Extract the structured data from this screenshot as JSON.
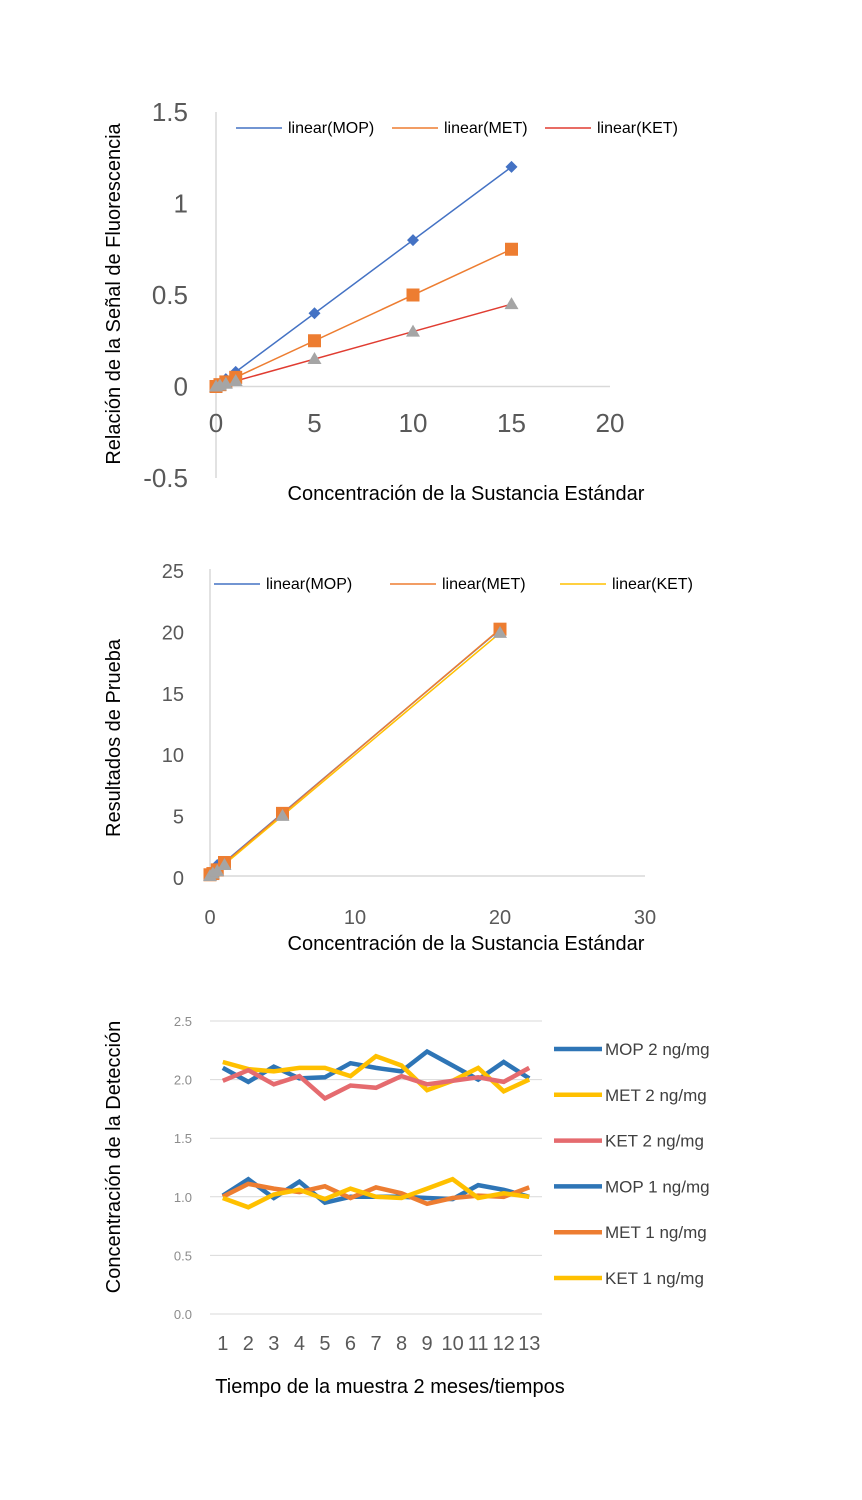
{
  "chart_data": [
    {
      "type": "scatter",
      "xlabel": "Concentración de la Sustancia Estándar",
      "ylabel": "Relación de la Señal de Fluorescencia",
      "xlim": [
        0,
        20
      ],
      "ylim": [
        -0.5,
        1.5
      ],
      "xticks": [
        "0",
        "5",
        "10",
        "15",
        "20"
      ],
      "yticks": [
        "-0.5",
        "0",
        "0.5",
        "1",
        "1.5"
      ],
      "grid": false,
      "legend_position": "top",
      "legend": [
        "linear(MOP)",
        "linear(MET)",
        "linear(KET)"
      ],
      "series": [
        {
          "key": "MOP",
          "color": "#4472c4",
          "line_color": "#4472c4",
          "marker": "diamond",
          "x": [
            0,
            0.2,
            0.5,
            1,
            5,
            10,
            15
          ],
          "y": [
            0,
            0.016,
            0.04,
            0.08,
            0.4,
            0.8,
            1.2
          ]
        },
        {
          "key": "MET",
          "color": "#ed7d31",
          "line_color": "#ed7d31",
          "marker": "square",
          "x": [
            0,
            0.2,
            0.5,
            1,
            5,
            10,
            15
          ],
          "y": [
            0,
            0.01,
            0.025,
            0.05,
            0.25,
            0.5,
            0.75
          ]
        },
        {
          "key": "KET",
          "color": "#a5a5a5",
          "line_color": "#e03c31",
          "marker": "triangle",
          "x": [
            0,
            0.2,
            0.5,
            1,
            5,
            10,
            15
          ],
          "y": [
            0,
            0.006,
            0.015,
            0.03,
            0.15,
            0.3,
            0.45
          ]
        }
      ]
    },
    {
      "type": "scatter",
      "xlabel": "Concentración de la Sustancia Estándar",
      "ylabel": "Resultados de Prueba",
      "xlim": [
        0,
        30
      ],
      "ylim": [
        0,
        25
      ],
      "xticks": [
        "0",
        "10",
        "20",
        "30"
      ],
      "yticks": [
        "0",
        "5",
        "10",
        "15",
        "20",
        "25"
      ],
      "grid": false,
      "legend_position": "top",
      "legend": [
        "linear(MOP)",
        "linear(MET)",
        "linear(KET)"
      ],
      "series": [
        {
          "key": "MOP",
          "color": "#4472c4",
          "line_color": "#4472c4",
          "marker": "diamond",
          "x": [
            0,
            0.2,
            0.5,
            1,
            5,
            20
          ],
          "y": [
            0.1,
            0.3,
            0.9,
            1.0,
            5.0,
            20.1
          ]
        },
        {
          "key": "MET",
          "color": "#ed7d31",
          "line_color": "#ed7d31",
          "marker": "square",
          "x": [
            0,
            0.2,
            0.5,
            1,
            5,
            20
          ],
          "y": [
            0.1,
            0.2,
            0.5,
            1.1,
            5.1,
            20.1
          ]
        },
        {
          "key": "KET",
          "color": "#a5a5a5",
          "line_color": "#ffc000",
          "marker": "triangle",
          "x": [
            0,
            0.2,
            0.5,
            1,
            5,
            20
          ],
          "y": [
            0,
            0.2,
            0.4,
            0.9,
            4.9,
            19.8
          ]
        }
      ]
    },
    {
      "type": "line",
      "xlabel": "Tiempo de la muestra  2 meses/tiempos",
      "ylabel": "Concentración de la Detección",
      "ylim": [
        0,
        2.5
      ],
      "yticks": [
        "0.0",
        "0.5",
        "1.0",
        "1.5",
        "2.0",
        "2.5"
      ],
      "grid": true,
      "legend_position": "right",
      "categories": [
        "1",
        "2",
        "3",
        "4",
        "5",
        "6",
        "7",
        "8",
        "9",
        "10",
        "11",
        "12",
        "13"
      ],
      "series": [
        {
          "name": "MOP 2 ng/mg",
          "color": "#2e75b6",
          "values": [
            2.1,
            1.98,
            2.11,
            2.01,
            2.02,
            2.14,
            2.1,
            2.07,
            2.24,
            2.12,
            2.0,
            2.15,
            2.01
          ]
        },
        {
          "name": "MET 2 ng/mg",
          "color": "#ffc000",
          "values": [
            2.15,
            2.09,
            2.07,
            2.1,
            2.1,
            2.03,
            2.2,
            2.12,
            1.91,
            1.99,
            2.1,
            1.9,
            2.0
          ]
        },
        {
          "name": "KET 2 ng/mg",
          "color": "#e56b6f",
          "values": [
            1.99,
            2.08,
            1.96,
            2.03,
            1.84,
            1.95,
            1.93,
            2.03,
            1.96,
            1.99,
            2.02,
            1.98,
            2.1
          ]
        },
        {
          "name": "MOP 1 ng/mg",
          "color": "#2e75b6",
          "values": [
            1.01,
            1.15,
            0.99,
            1.13,
            0.95,
            1.0,
            1.0,
            1.0,
            0.99,
            0.98,
            1.1,
            1.06,
            1.0
          ]
        },
        {
          "name": "MET 1 ng/mg",
          "color": "#ed7d31",
          "values": [
            1.0,
            1.11,
            1.07,
            1.04,
            1.09,
            0.99,
            1.08,
            1.03,
            0.94,
            0.99,
            1.01,
            1.0,
            1.08
          ]
        },
        {
          "name": "KET 1 ng/mg",
          "color": "#ffc000",
          "values": [
            0.99,
            0.91,
            1.02,
            1.06,
            0.98,
            1.07,
            1.0,
            0.99,
            1.07,
            1.15,
            0.99,
            1.03,
            1.0
          ]
        }
      ]
    }
  ]
}
